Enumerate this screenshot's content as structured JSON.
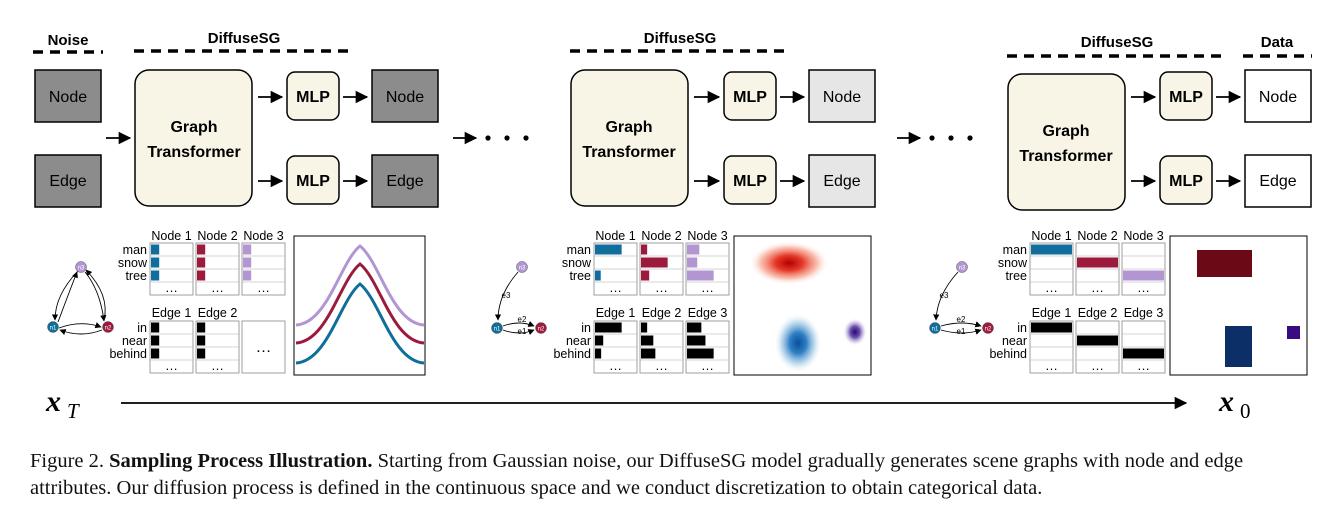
{
  "headers": {
    "noise": "Noise",
    "diffusesg": "DiffuseSG",
    "data": "Data"
  },
  "blocks": {
    "node": "Node",
    "edge": "Edge",
    "mlp": "MLP",
    "graph_line1": "Graph",
    "graph_line2": "Transformer",
    "ellipsis": "…"
  },
  "table_labels": {
    "node_cols": [
      "Node 1",
      "Node 2",
      "Node 3"
    ],
    "edge_cols": [
      "Edge 1",
      "Edge 2",
      "Edge 3"
    ],
    "node_rows": [
      "man",
      "snow",
      "tree"
    ],
    "edge_rows": [
      "in",
      "near",
      "behind"
    ]
  },
  "graph_labels": {
    "nodes": [
      "n1",
      "n2",
      "n3"
    ],
    "edges": [
      "e1",
      "e2",
      "e3"
    ]
  },
  "axis": {
    "start_symbol": "x",
    "start_sub": "T",
    "end_symbol": "x",
    "end_sub": "0"
  },
  "caption": {
    "prefix": "Figure 2. ",
    "bold": "Sampling Process Illustration.",
    "text": " Starting from Gaussian noise, our DiffuseSG model gradually generates scene graphs with node and edge attributes. Our diffusion process is defined in the continuous space and we conduct discretization to obtain categorical data."
  },
  "colors": {
    "noise_fill": "#8c8c8c",
    "mid_fill": "#e6e6e6",
    "final_fill": "#ffffff",
    "transformer_fill": "#f8f5e6",
    "mlp_fill": "#f8f5e6",
    "node1": "#0f6e9c",
    "node2": "#9c1a3b",
    "node3": "#b196d1",
    "edge": "#000000"
  }
}
